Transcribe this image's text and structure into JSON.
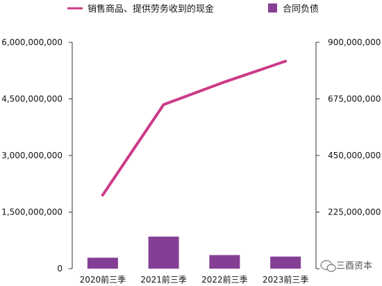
{
  "chart_data": {
    "type": "bar",
    "categories": [
      "2020前三季",
      "2021前三季",
      "2022前三季",
      "2023前三季"
    ],
    "series": [
      {
        "name": "合同负债",
        "kind": "bar",
        "axis": "left",
        "color": "#843f94",
        "values": [
          290000000,
          850000000,
          360000000,
          320000000
        ]
      },
      {
        "name": "销售商品、提供劳务收到的现金",
        "kind": "line",
        "axis": "left",
        "color": "#cc3a87",
        "values": [
          1950000000,
          4350000000,
          4950000000,
          5500000000
        ]
      }
    ],
    "y_left": {
      "min": 0,
      "max": 6000000000,
      "ticks": [
        0,
        1500000000,
        3000000000,
        4500000000,
        6000000000
      ],
      "tick_labels": [
        "0",
        "1,500,000,000",
        "3,000,000,000",
        "4,500,000,000",
        "6,000,000,000"
      ]
    },
    "y_right": {
      "min": 0,
      "max": 900000000,
      "ticks": [
        0,
        225000000,
        450000000,
        675000000,
        900000000
      ],
      "tick_labels": [
        "0",
        "225,000,000",
        "450,000,000",
        "675,000,000",
        "900,000,000"
      ]
    },
    "grid": false,
    "legend_position": "top",
    "watermark": "三酉资本"
  }
}
